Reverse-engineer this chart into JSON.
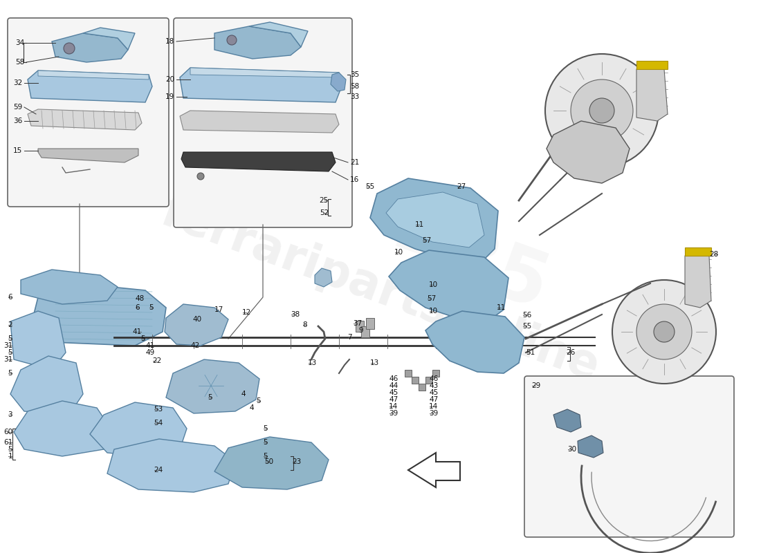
{
  "bg": "#ffffff",
  "fig_w": 11.0,
  "fig_h": 8.0,
  "dpi": 100,
  "part_blue": "#a8c8e0",
  "part_blue2": "#b8d4e8",
  "part_edge": "#5580a0",
  "line_color": "#444444",
  "text_color": "#111111",
  "box_edge": "#666666",
  "box_face": "#f5f5f5",
  "wm_color": "#cccccc"
}
